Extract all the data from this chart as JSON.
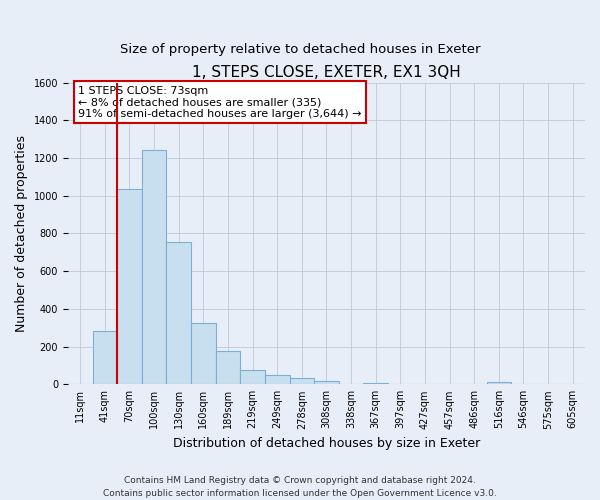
{
  "title": "1, STEPS CLOSE, EXETER, EX1 3QH",
  "subtitle": "Size of property relative to detached houses in Exeter",
  "xlabel": "Distribution of detached houses by size in Exeter",
  "ylabel": "Number of detached properties",
  "bar_labels": [
    "11sqm",
    "41sqm",
    "70sqm",
    "100sqm",
    "130sqm",
    "160sqm",
    "189sqm",
    "219sqm",
    "249sqm",
    "278sqm",
    "308sqm",
    "338sqm",
    "367sqm",
    "397sqm",
    "427sqm",
    "457sqm",
    "486sqm",
    "516sqm",
    "546sqm",
    "575sqm",
    "605sqm"
  ],
  "bar_values": [
    0,
    280,
    1035,
    1240,
    755,
    325,
    175,
    75,
    50,
    35,
    20,
    0,
    5,
    0,
    0,
    0,
    0,
    10,
    0,
    0,
    0
  ],
  "bar_color": "#c8dff0",
  "bar_edge_color": "#7bafd4",
  "vline_color": "#cc0000",
  "vline_x_index": 2,
  "annotation_text": "1 STEPS CLOSE: 73sqm\n← 8% of detached houses are smaller (335)\n91% of semi-detached houses are larger (3,644) →",
  "ylim": [
    0,
    1600
  ],
  "yticks": [
    0,
    200,
    400,
    600,
    800,
    1000,
    1200,
    1400,
    1600
  ],
  "footer_line1": "Contains HM Land Registry data © Crown copyright and database right 2024.",
  "footer_line2": "Contains public sector information licensed under the Open Government Licence v3.0.",
  "bg_color": "#e8eef8",
  "plot_bg_color": "#e8eef8",
  "title_fontsize": 11,
  "subtitle_fontsize": 9.5,
  "label_fontsize": 9,
  "tick_fontsize": 7,
  "footer_fontsize": 6.5,
  "annotation_fontsize": 8
}
